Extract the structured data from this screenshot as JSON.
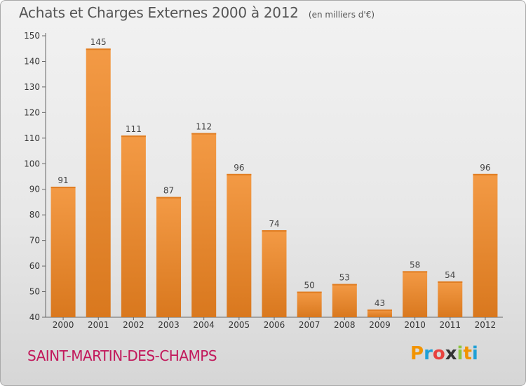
{
  "header": {
    "title": "Achats et Charges Externes 2000 à 2012",
    "unit": "(en milliers d'€)"
  },
  "footer": {
    "commune": "SAINT-MARTIN-DES-CHAMPS",
    "logo_letters": [
      "P",
      "r",
      "o",
      "x",
      "i",
      "t",
      "i"
    ],
    "logo_colors": [
      "#f29400",
      "#1fa0d6",
      "#e8423f",
      "#333333",
      "#8dc63f",
      "#f29400",
      "#1fa0d6"
    ]
  },
  "colors": {
    "bar": "#f39a45",
    "bar_dark": "#d9781e",
    "commune": "#c2185b"
  },
  "chart_data": {
    "type": "bar",
    "categories": [
      "2000",
      "2001",
      "2002",
      "2003",
      "2004",
      "2005",
      "2006",
      "2007",
      "2008",
      "2009",
      "2010",
      "2011",
      "2012"
    ],
    "values": [
      91,
      145,
      111,
      87,
      112,
      96,
      74,
      50,
      53,
      43,
      58,
      54,
      96
    ],
    "title": "Achats et Charges Externes 2000 à 2012",
    "ylim": [
      40,
      150
    ],
    "yticks": [
      40,
      50,
      60,
      70,
      80,
      90,
      100,
      110,
      120,
      130,
      140,
      150
    ],
    "grid": false,
    "legend": "none"
  }
}
